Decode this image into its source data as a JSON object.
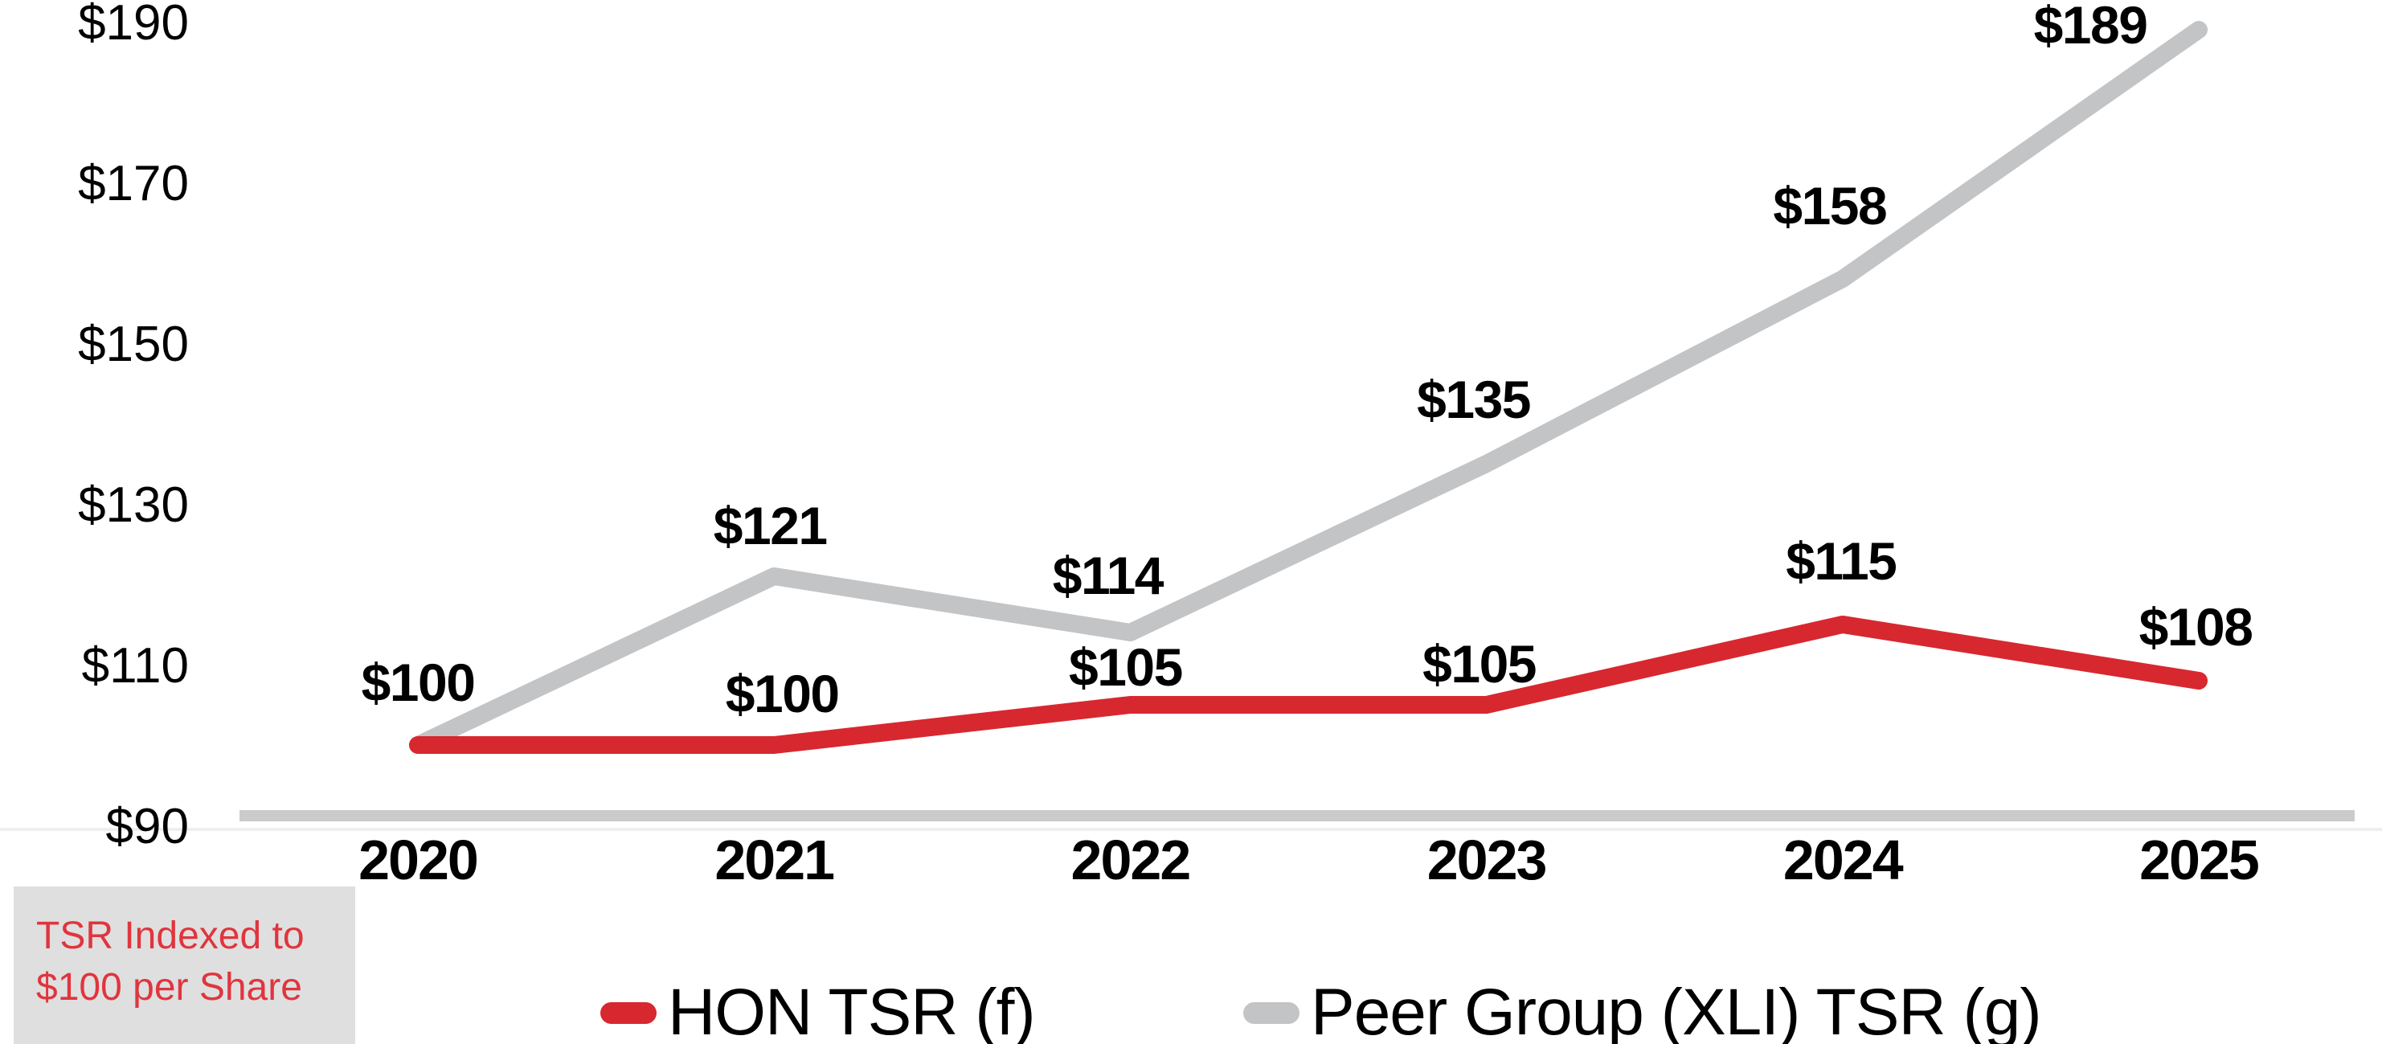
{
  "chart_data": {
    "type": "line",
    "title": "",
    "categories": [
      "2020",
      "2021",
      "2022",
      "2023",
      "2024",
      "2025"
    ],
    "series": [
      {
        "name": "HON TSR (f)",
        "color": "#D7282F",
        "values": [
          100,
          100,
          105,
          105,
          115,
          108
        ],
        "labels": [
          "$100",
          "$100",
          "$105",
          "$105",
          "$115",
          "$108"
        ]
      },
      {
        "name": "Peer Group (XLI) TSR (g)",
        "color": "#C3C4C6",
        "values": [
          100,
          121,
          114,
          135,
          158,
          189
        ],
        "labels": [
          null,
          "$121",
          "$114",
          "$135",
          "$158",
          "$189"
        ]
      }
    ],
    "yticks": [
      90,
      110,
      130,
      150,
      170,
      190
    ],
    "ytick_labels": [
      "$90",
      "$110",
      "$130",
      "$150",
      "$170",
      "$190"
    ],
    "ylim": [
      90,
      190
    ],
    "grid": false,
    "legend_position": "bottom",
    "axis_color": "#CBCBCB",
    "annotation": "TSR Indexed to $100 per Share"
  },
  "footnote_box": {
    "line1": "TSR Indexed to",
    "line2": "$100 per Share",
    "text_color": "#E0353E",
    "bg_color": "#DFDFDF"
  },
  "legend": {
    "items": [
      {
        "label": "HON TSR (f)",
        "color": "#D7282F"
      },
      {
        "label": "Peer Group (XLI) TSR (g)",
        "color": "#C3C4C6"
      }
    ]
  }
}
